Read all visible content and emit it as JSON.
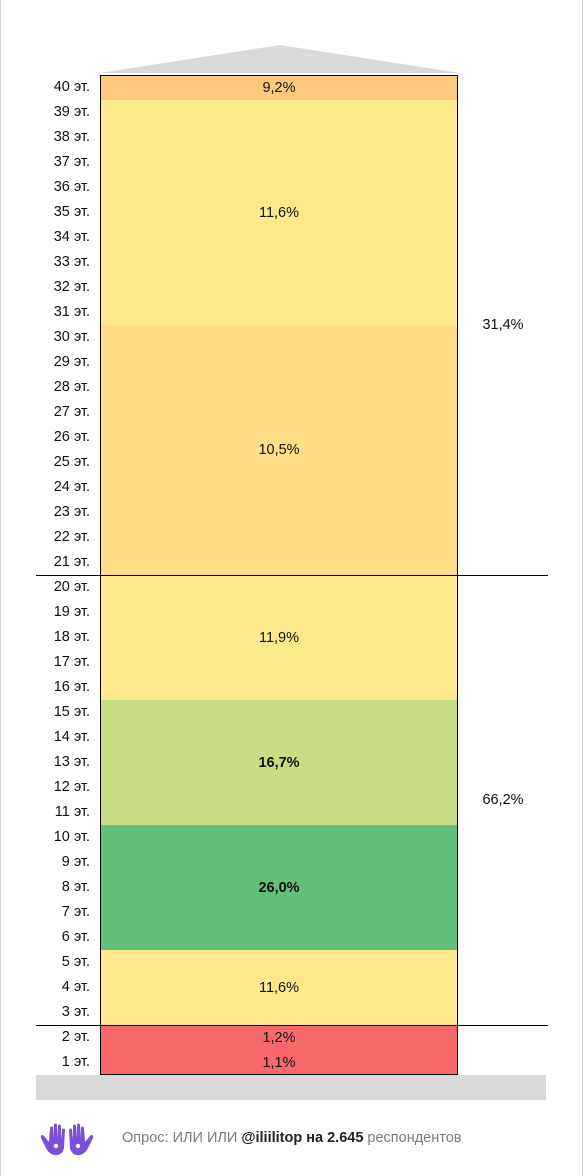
{
  "chart_data": {
    "type": "bar",
    "floor_suffix": "эт.",
    "floors": [
      40,
      39,
      38,
      37,
      36,
      35,
      34,
      33,
      32,
      31,
      30,
      29,
      28,
      27,
      26,
      25,
      24,
      23,
      22,
      21,
      20,
      19,
      18,
      17,
      16,
      15,
      14,
      13,
      12,
      11,
      10,
      9,
      8,
      7,
      6,
      5,
      4,
      3,
      2,
      1
    ],
    "blocks": [
      {
        "label": "9,2%",
        "value": 9.2,
        "floor_from": 40,
        "floor_to": 40,
        "color": "#fdc97f",
        "bold": false
      },
      {
        "label": "11,6%",
        "value": 11.6,
        "floor_from": 31,
        "floor_to": 39,
        "color": "#fde98b",
        "bold": false
      },
      {
        "label": "10,5%",
        "value": 10.5,
        "floor_from": 21,
        "floor_to": 30,
        "color": "#fddd86",
        "bold": false
      },
      {
        "label": "11,9%",
        "value": 11.9,
        "floor_from": 16,
        "floor_to": 20,
        "color": "#fde98b",
        "bold": false
      },
      {
        "label": "16,7%",
        "value": 16.7,
        "floor_from": 11,
        "floor_to": 15,
        "color": "#c9dd86",
        "bold": true
      },
      {
        "label": "26,0%",
        "value": 26.0,
        "floor_from": 6,
        "floor_to": 10,
        "color": "#64bf7b",
        "bold": true
      },
      {
        "label": "11,6%",
        "value": 11.6,
        "floor_from": 3,
        "floor_to": 5,
        "color": "#fde98b",
        "bold": false
      },
      {
        "label": "1,2%",
        "value": 1.2,
        "floor_from": 2,
        "floor_to": 2,
        "color": "#f8696b",
        "bold": false
      },
      {
        "label": "1,1%",
        "value": 1.1,
        "floor_from": 1,
        "floor_to": 1,
        "color": "#f8696b",
        "bold": false
      }
    ],
    "groups": [
      {
        "label": "31,4%",
        "value": 31.4,
        "floor_from": 21,
        "floor_to": 40
      },
      {
        "label": "66,2%",
        "value": 66.2,
        "floor_from": 3,
        "floor_to": 20
      }
    ],
    "dividers_below_floor": [
      21,
      3
    ]
  },
  "footer": {
    "prefix": "Опрос: ИЛИ ИЛИ",
    "handle": "@iliilitop",
    "on_count": "на 2.645",
    "suffix": "респондентов",
    "logo_icon": "hands-logo-icon",
    "logo_color": "#7b4fd6"
  }
}
